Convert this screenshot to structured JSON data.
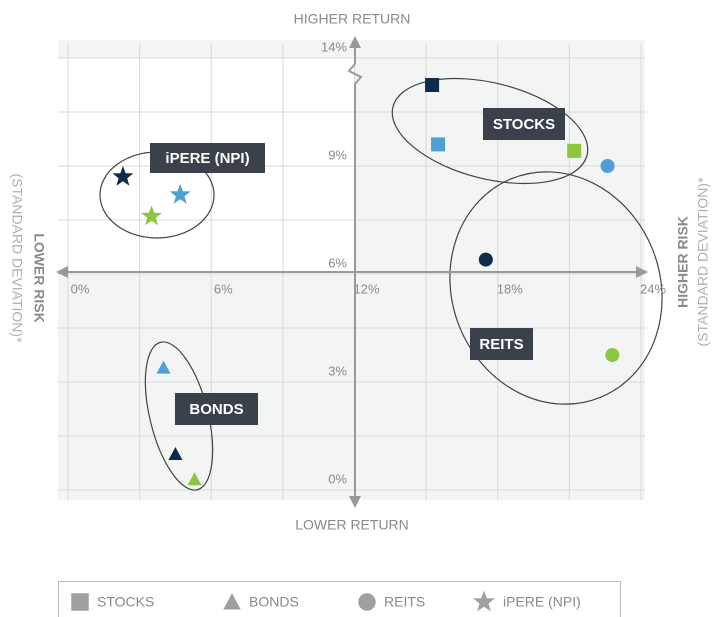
{
  "chart_data": {
    "type": "scatter",
    "x_labels": {
      "top": "HIGHER RETURN",
      "bottom": "LOWER RETURN"
    },
    "y_labels": {
      "left": "LOWER RISK",
      "left_sub": "(STANDARD DEVIATION)*",
      "right": "HIGHER RISK",
      "right_sub": "(STANDARD DEVIATION)*"
    },
    "xlim": [
      0,
      24
    ],
    "xticks": [
      {
        "value": 0,
        "label": "0%"
      },
      {
        "value": 6,
        "label": "6%"
      },
      {
        "value": 12,
        "label": "12%"
      },
      {
        "value": 18,
        "label": "18%"
      },
      {
        "value": 24,
        "label": "24%"
      }
    ],
    "ylim": [
      0,
      14
    ],
    "yticks": [
      {
        "value": 0,
        "label": "0%"
      },
      {
        "value": 3,
        "label": "3%"
      },
      {
        "value": 6,
        "label": "6%"
      },
      {
        "value": 9,
        "label": "9%"
      },
      {
        "value": 14,
        "label": "14%"
      }
    ],
    "y_axis_break": true,
    "grid": true,
    "series": [
      {
        "name": "STOCKS",
        "marker": "square",
        "colors": [
          "#0d2c4a",
          "#4f9fd6",
          "#8dc63f"
        ],
        "x": [
          15.25,
          15.5,
          21.2
        ],
        "values": [
          12.75,
          10.0,
          9.7
        ]
      },
      {
        "name": "BONDS",
        "marker": "triangle",
        "colors": [
          "#4f9fd6",
          "#0d2c4a",
          "#8dc63f"
        ],
        "x": [
          4.0,
          4.5,
          5.3
        ],
        "values": [
          3.4,
          1.0,
          0.3
        ]
      },
      {
        "name": "REITS",
        "marker": "circle",
        "colors": [
          "#4f9fd6",
          "#0d2c4a",
          "#8dc63f"
        ],
        "x": [
          22.6,
          17.5,
          22.8
        ],
        "values": [
          9.0,
          6.4,
          3.75
        ]
      },
      {
        "name": "iPERE (NPI)",
        "marker": "star",
        "colors": [
          "#0d2c4a",
          "#4f9fd6",
          "#8dc63f"
        ],
        "x": [
          2.3,
          4.7,
          3.5
        ],
        "values": [
          8.7,
          8.2,
          7.6
        ]
      }
    ]
  }
}
